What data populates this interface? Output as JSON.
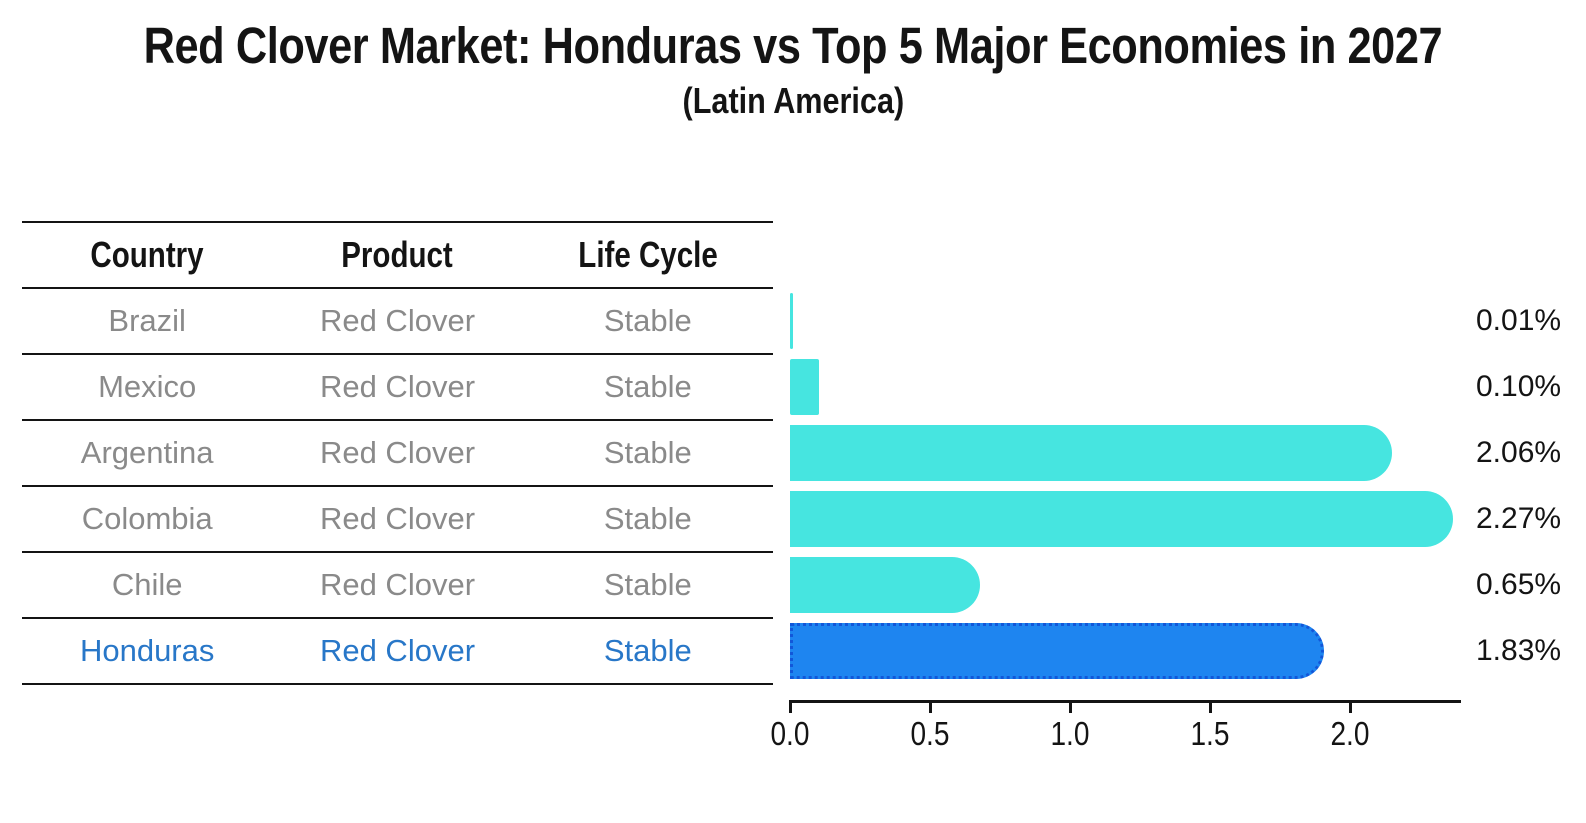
{
  "title": "Red Clover Market: Honduras vs Top 5 Major Economies in 2027",
  "subtitle": "(Latin America)",
  "table": {
    "headers": [
      "Country",
      "Product",
      "Life Cycle"
    ],
    "rows": [
      {
        "country": "Brazil",
        "product": "Red Clover",
        "life_cycle": "Stable",
        "highlighted": false
      },
      {
        "country": "Mexico",
        "product": "Red Clover",
        "life_cycle": "Stable",
        "highlighted": false
      },
      {
        "country": "Argentina",
        "product": "Red Clover",
        "life_cycle": "Stable",
        "highlighted": false
      },
      {
        "country": "Colombia",
        "product": "Red Clover",
        "life_cycle": "Stable",
        "highlighted": false
      },
      {
        "country": "Chile",
        "product": "Red Clover",
        "life_cycle": "Stable",
        "highlighted": false
      },
      {
        "country": "Honduras",
        "product": "Red Clover",
        "life_cycle": "Stable",
        "highlighted": true
      }
    ]
  },
  "chart_data": {
    "type": "bar",
    "orientation": "horizontal",
    "title": "Red Clover Market: Honduras vs Top 5 Major Economies in 2027",
    "subtitle": "(Latin America)",
    "categories": [
      "Brazil",
      "Mexico",
      "Argentina",
      "Colombia",
      "Chile",
      "Honduras"
    ],
    "values": [
      0.01,
      0.1,
      2.06,
      2.27,
      0.65,
      1.83
    ],
    "value_labels": [
      "0.01%",
      "0.10%",
      "2.06%",
      "2.27%",
      "0.65%",
      "1.83%"
    ],
    "x_tick_labels": [
      "0.0",
      "0.5",
      "1.0",
      "1.5",
      "2.0"
    ],
    "xlim": [
      0,
      2.4
    ],
    "x_tick_step": 0.5,
    "grid": false,
    "legend": false,
    "highlight_category": "Honduras",
    "highlight_index": 5,
    "colors": {
      "bar": "#46e5e0",
      "highlight_bar": "#1e85f0",
      "highlight_bar_border": "#1257d9",
      "axis": "#141414",
      "text": "#141414",
      "muted_row_text": "#8a8a8a",
      "highlight_row_text": "#2877c8"
    }
  }
}
